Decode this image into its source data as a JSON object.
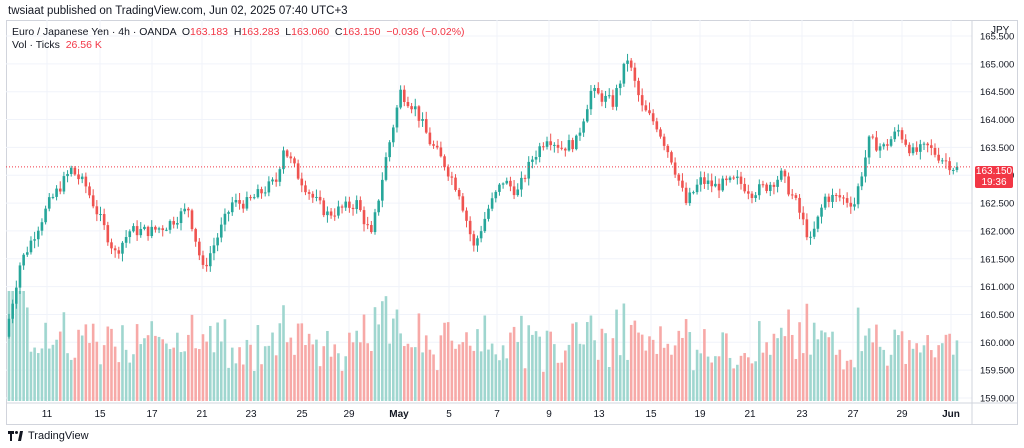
{
  "header": {
    "published": "twsiaat published on TradingView.com, Jun 02, 2025 07:40 UTC+3"
  },
  "legend": {
    "symbol": "Euro / Japanese Yen · 4h · OANDA",
    "o_label": "O",
    "o_value": "163.183",
    "h_label": "H",
    "h_value": "163.283",
    "l_label": "L",
    "l_value": "163.060",
    "c_label": "C",
    "c_value": "163.150",
    "change": "−0.036 (−0.02%)",
    "vol_label": "Vol · Ticks",
    "vol_value": "26.56 K"
  },
  "price_axis": {
    "currency": "JPY"
  },
  "current_price": {
    "price": "163.150",
    "countdown": "19:36"
  },
  "footer": {
    "brand": "TradingView"
  },
  "colors": {
    "up": "#26a69a",
    "down": "#ef5350",
    "vol_up": "#9fd6cf",
    "vol_down": "#f7a9a7"
  },
  "chart_data": {
    "type": "candlestick",
    "symbol": "EUR/JPY",
    "timeframe": "4h",
    "ylim": [
      159.0,
      165.5
    ],
    "y_ticks": [
      "165.500",
      "165.000",
      "164.500",
      "164.000",
      "163.500",
      "163.000",
      "162.500",
      "162.000",
      "161.500",
      "161.000",
      "160.500",
      "160.000",
      "159.500",
      "159.000"
    ],
    "x_ticks": [
      "11",
      "15",
      "17",
      "21",
      "23",
      "25",
      "29",
      "May",
      "5",
      "7",
      "9",
      "13",
      "15",
      "19",
      "21",
      "23",
      "27",
      "29",
      "Jun"
    ],
    "last_price": 163.15,
    "path_points": [
      [
        0,
        160.1
      ],
      [
        4,
        161.4
      ],
      [
        12,
        162.5
      ],
      [
        18,
        163.1
      ],
      [
        22,
        162.8
      ],
      [
        26,
        162.2
      ],
      [
        30,
        161.6
      ],
      [
        34,
        162.0
      ],
      [
        40,
        162.0
      ],
      [
        44,
        162.1
      ],
      [
        50,
        162.4
      ],
      [
        54,
        161.3
      ],
      [
        58,
        161.9
      ],
      [
        62,
        162.5
      ],
      [
        66,
        162.5
      ],
      [
        74,
        162.9
      ],
      [
        76,
        163.5
      ],
      [
        80,
        163.0
      ],
      [
        84,
        162.6
      ],
      [
        88,
        162.3
      ],
      [
        92,
        162.4
      ],
      [
        96,
        162.5
      ],
      [
        100,
        161.9
      ],
      [
        104,
        163.3
      ],
      [
        108,
        164.5
      ],
      [
        112,
        164.2
      ],
      [
        116,
        163.6
      ],
      [
        120,
        163.2
      ],
      [
        124,
        162.7
      ],
      [
        128,
        161.7
      ],
      [
        132,
        162.4
      ],
      [
        136,
        162.9
      ],
      [
        140,
        162.7
      ],
      [
        144,
        163.3
      ],
      [
        148,
        163.7
      ],
      [
        152,
        163.5
      ],
      [
        156,
        163.6
      ],
      [
        160,
        164.5
      ],
      [
        166,
        164.3
      ],
      [
        170,
        165.1
      ],
      [
        174,
        164.2
      ],
      [
        178,
        163.9
      ],
      [
        182,
        163.3
      ],
      [
        186,
        162.5
      ],
      [
        190,
        162.9
      ],
      [
        194,
        162.8
      ],
      [
        200,
        162.9
      ],
      [
        204,
        162.7
      ],
      [
        208,
        162.8
      ],
      [
        212,
        163.0
      ],
      [
        216,
        162.5
      ],
      [
        220,
        161.8
      ],
      [
        224,
        162.6
      ],
      [
        228,
        162.6
      ],
      [
        232,
        162.5
      ],
      [
        236,
        163.6
      ],
      [
        240,
        163.5
      ],
      [
        244,
        163.8
      ],
      [
        248,
        163.4
      ],
      [
        252,
        163.5
      ],
      [
        256,
        163.3
      ],
      [
        259,
        163.15
      ]
    ],
    "volume_ticks_range": [
      0,
      60000
    ],
    "last_volume_ticks": "26.56 K"
  }
}
